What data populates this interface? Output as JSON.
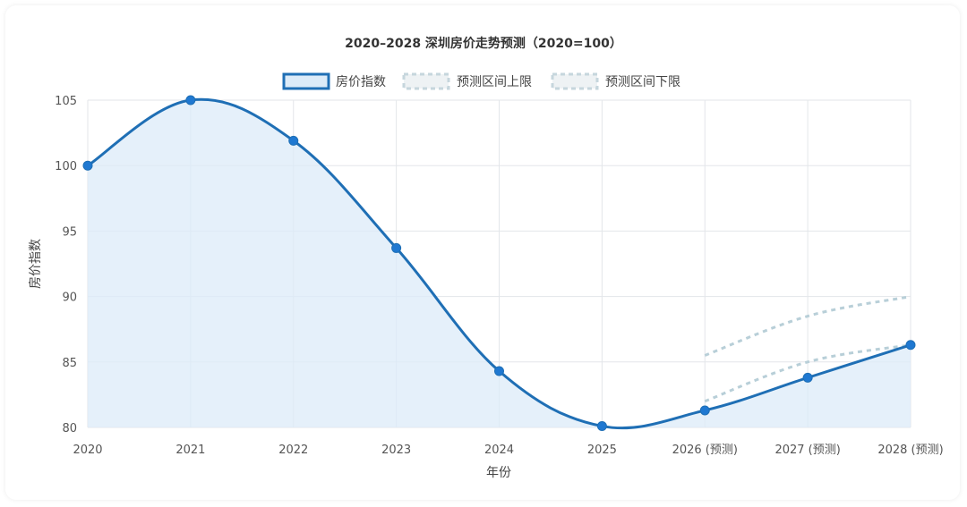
{
  "chart_data": {
    "type": "line",
    "title": "2020–2028 深圳房价走势预测（2020=100）",
    "xlabel": "年份",
    "ylabel": "房价指数",
    "categories": [
      "2020",
      "2021",
      "2022",
      "2023",
      "2024",
      "2025",
      "2026 (预测)",
      "2027 (预测)",
      "2028 (预测)"
    ],
    "ylim": [
      80,
      105
    ],
    "yticks": [
      80,
      85,
      90,
      95,
      100,
      105
    ],
    "grid": true,
    "legend_position": "top-center",
    "series": [
      {
        "name": "房价指数",
        "values": [
          100,
          105,
          101.9,
          93.7,
          84.3,
          80.1,
          81.3,
          83.8,
          86.3
        ],
        "color": "#1f6fb5",
        "fill": "#dcebf8",
        "style": "solid"
      },
      {
        "name": "预测区间上限",
        "values": [
          null,
          null,
          null,
          null,
          null,
          null,
          85.5,
          88.5,
          90
        ],
        "color": "#b8cfd8",
        "style": "dashed"
      },
      {
        "name": "预测区间下限",
        "values": [
          null,
          null,
          null,
          null,
          null,
          null,
          82,
          85,
          86.3
        ],
        "color": "#b8cfd8",
        "style": "dashed"
      }
    ]
  }
}
